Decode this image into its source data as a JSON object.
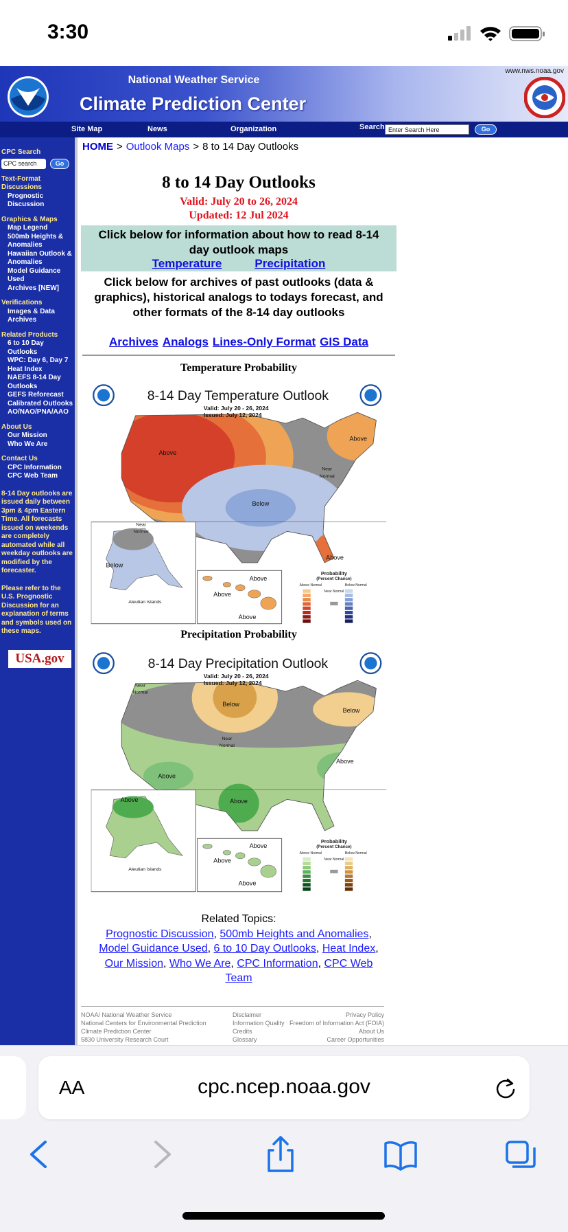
{
  "status_bar": {
    "time": "3:30"
  },
  "header": {
    "url": "www.nws.noaa.gov",
    "agency": "National Weather Service",
    "title": "Climate Prediction Center"
  },
  "nav": {
    "items": [
      "Site Map",
      "News",
      "Organization"
    ],
    "search_label": "Search",
    "search_placeholder": "Enter Search Here",
    "go": "Go"
  },
  "breadcrumb": {
    "items": [
      "HOME",
      "Outlook Maps",
      "8 to 14 Day Outlooks"
    ],
    "separator": ">"
  },
  "sidebar": {
    "search_heading": "CPC Search",
    "search_placeholder": "CPC search",
    "go": "Go",
    "sections": [
      {
        "heading": "Text-Format Discussions",
        "items": [
          "Prognostic Discussion"
        ]
      },
      {
        "heading": "Graphics & Maps",
        "items": [
          "Map Legend",
          "500mb Heights & Anomalies",
          "Hawaiian Outlook & Anomalies",
          "Model Guidance Used",
          "Archives [NEW]"
        ]
      },
      {
        "heading": "Verifications",
        "items": [
          "Images & Data Archives"
        ]
      },
      {
        "heading": "Related Products",
        "items": [
          "6 to 10 Day Outlooks",
          "WPC: Day 6, Day 7 Heat Index",
          "NAEFS 8-14 Day Outlooks",
          "GEFS Reforecast Calibrated Outlooks",
          "AO/NAO/PNA/AAO"
        ]
      },
      {
        "heading": "About Us",
        "items": [
          "Our Mission",
          "Who We Are"
        ]
      },
      {
        "heading": "Contact Us",
        "items": [
          "CPC Information",
          "CPC Web Team"
        ]
      }
    ],
    "notes": [
      "8-14 Day outlooks are issued daily between 3pm & 4pm Eastern Time. All forecasts issued on weekends are completely automated while all weekday outlooks are modified by the forecaster.",
      "Please refer to the U.S. Prognostic Discussion for an explanation of terms and symbols used on these maps."
    ],
    "logo": "USA.gov"
  },
  "main": {
    "title": "8 to 14 Day Outlooks",
    "valid": "Valid: July 20 to 26, 2024",
    "updated": "Updated: 12 Jul 2024",
    "info_text": "Click below for information about how to read 8-14 day outlook maps",
    "info_links": [
      "Temperature",
      "Precipitation"
    ],
    "archive_text": "Click below for archives of past outlooks (data & graphics), historical analogs to todays forecast, and other formats of the 8-14 day outlooks",
    "archive_links": [
      "Archives",
      "Analogs",
      "Lines-Only Format",
      "GIS Data"
    ]
  },
  "maps": [
    {
      "heading": "Temperature Probability",
      "title": "8-14 Day Temperature Outlook",
      "valid": "Valid:  July 20 - 26, 2024",
      "issued": "Issued:  July 12, 2024",
      "labels": [
        "Above",
        "Above",
        "Near Normal",
        "Below",
        "Above",
        "Near Normal",
        "Below",
        "Aleutian Islands",
        "Above",
        "Above",
        "Above"
      ],
      "legend": [
        "Probability",
        "(Percent Chance)",
        "Above Normal",
        "Below Normal",
        "Near Normal"
      ]
    },
    {
      "heading": "Precipitation Probability",
      "title": "8-14 Day Precipitation Outlook",
      "valid": "Valid:  July 20 - 26, 2024",
      "issued": "Issued:  July 12, 2024",
      "labels": [
        "Near Normal",
        "Below",
        "Below",
        "Near Normal",
        "Above",
        "Above",
        "Above",
        "Above",
        "Aleutian Islands",
        "Above",
        "Above",
        "Above"
      ],
      "legend": [
        "Probability",
        "(Percent Chance)",
        "Above Normal",
        "Below Normal",
        "Near Normal"
      ]
    }
  ],
  "related": {
    "heading": "Related Topics:",
    "links": [
      "Prognostic Discussion",
      "500mb Heights and Anomalies",
      "Model Guidance Used",
      "6 to 10 Day Outlooks",
      "Heat Index",
      "Our Mission",
      "Who We Are",
      "CPC Information",
      "CPC Web Team"
    ],
    "separator": ","
  },
  "footer": {
    "left": [
      "NOAA/ National Weather Service",
      "National Centers for Environmental Prediction",
      "Climate Prediction Center",
      "5830 University Research Court"
    ],
    "middle": [
      "Disclaimer",
      "Information Quality",
      "Credits",
      "Glossary"
    ],
    "right": [
      "Privacy Policy",
      "Freedom of Information Act (FOIA)",
      "About Us",
      "Career Opportunities"
    ]
  },
  "browser": {
    "text_size": "AA",
    "host": "cpc.ncep.noaa.gov"
  }
}
